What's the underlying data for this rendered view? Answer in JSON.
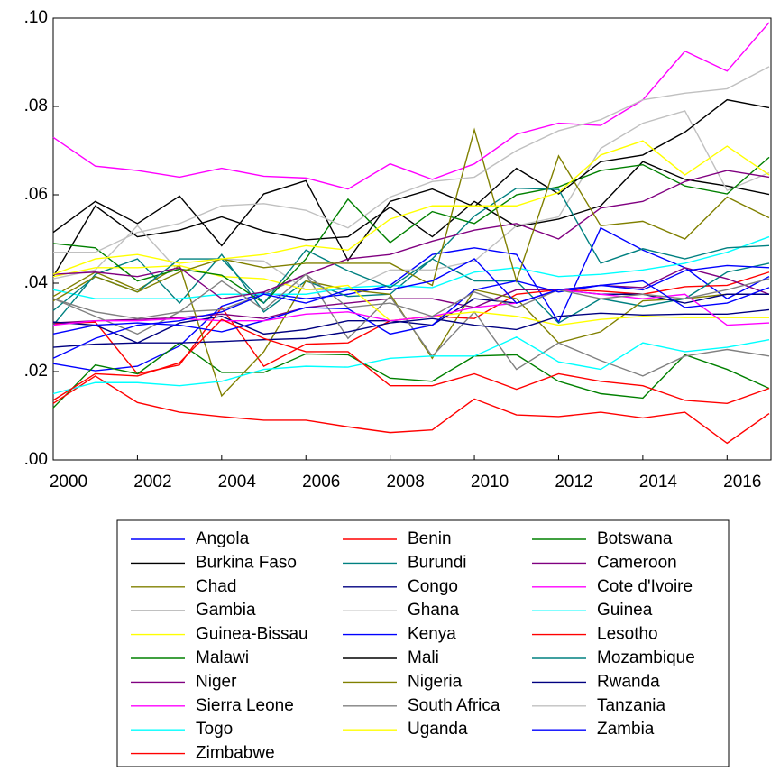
{
  "chart_data": {
    "type": "line",
    "x": [
      2000,
      2001,
      2002,
      2003,
      2004,
      2005,
      2006,
      2007,
      2008,
      2009,
      2010,
      2011,
      2012,
      2013,
      2014,
      2015,
      2016,
      2017
    ],
    "xlim": [
      2000,
      2017
    ],
    "xticks": [
      2000,
      2002,
      2004,
      2006,
      2008,
      2010,
      2012,
      2014,
      2016
    ],
    "ylim": [
      0,
      0.1
    ],
    "yticks": [
      {
        "value": 0,
        "label": ".00"
      },
      {
        "value": 0.02,
        "label": ".02"
      },
      {
        "value": 0.04,
        "label": ".04"
      },
      {
        "value": 0.06,
        "label": ".06"
      },
      {
        "value": 0.08,
        "label": ".08"
      },
      {
        "value": 0.1,
        "label": ".10"
      }
    ],
    "series": [
      {
        "name": "Angola",
        "color": "#0000ff",
        "values": [
          0.0218,
          0.0202,
          0.0212,
          0.0258,
          0.0348,
          0.0378,
          0.0365,
          0.0375,
          0.0395,
          0.0465,
          0.048,
          0.0465,
          0.0312,
          0.0525,
          0.0475,
          0.0435,
          0.0365,
          0.0415
        ]
      },
      {
        "name": "Benin",
        "color": "#ff0000",
        "values": [
          0.0308,
          0.0312,
          0.0195,
          0.0215,
          0.0345,
          0.0212,
          0.0262,
          0.0265,
          0.0315,
          0.0325,
          0.032,
          0.0375,
          0.0385,
          0.0382,
          0.0375,
          0.0392,
          0.0395,
          0.0425
        ]
      },
      {
        "name": "Botswana",
        "color": "#008000",
        "values": [
          0.0118,
          0.0215,
          0.0195,
          0.0265,
          0.0198,
          0.0198,
          0.024,
          0.0238,
          0.0185,
          0.0178,
          0.0235,
          0.0238,
          0.0178,
          0.015,
          0.014,
          0.0238,
          0.0205,
          0.0162
        ]
      },
      {
        "name": "Burkina Faso",
        "color": "#000000",
        "values": [
          0.0415,
          0.0575,
          0.0505,
          0.052,
          0.055,
          0.0518,
          0.0498,
          0.0505,
          0.0572,
          0.0505,
          0.0585,
          0.0528,
          0.0545,
          0.0575,
          0.0675,
          0.0635,
          0.062,
          0.0601
        ]
      },
      {
        "name": "Burundi",
        "color": "#008080",
        "values": [
          0.0305,
          0.042,
          0.0455,
          0.0355,
          0.0465,
          0.0335,
          0.0405,
          0.037,
          0.0375,
          0.0455,
          0.0405,
          0.0405,
          0.031,
          0.0365,
          0.0348,
          0.0365,
          0.0425,
          0.0445
        ]
      },
      {
        "name": "Cameroon",
        "color": "#800080",
        "values": [
          0.031,
          0.0315,
          0.0318,
          0.0322,
          0.033,
          0.032,
          0.0345,
          0.0355,
          0.0365,
          0.0365,
          0.0345,
          0.0385,
          0.0385,
          0.0395,
          0.039,
          0.0435,
          0.041,
          0.0375
        ]
      },
      {
        "name": "Chad",
        "color": "#808000",
        "values": [
          0.037,
          0.0425,
          0.0385,
          0.044,
          0.0145,
          0.0245,
          0.0405,
          0.0385,
          0.0375,
          0.023,
          0.0385,
          0.0365,
          0.0265,
          0.029,
          0.036,
          0.0365,
          0.0375,
          0.0375
        ]
      },
      {
        "name": "Congo",
        "color": "#000080",
        "values": [
          0.0312,
          0.0305,
          0.0265,
          0.031,
          0.0325,
          0.0285,
          0.0295,
          0.0315,
          0.0315,
          0.0305,
          0.0365,
          0.0355,
          0.0385,
          0.0375,
          0.0375,
          0.0355,
          0.0375,
          0.0375
        ]
      },
      {
        "name": "Cote d'Ivoire",
        "color": "#ff00ff",
        "values": [
          0.073,
          0.0665,
          0.0655,
          0.064,
          0.066,
          0.0642,
          0.0638,
          0.0613,
          0.067,
          0.0635,
          0.067,
          0.0737,
          0.0762,
          0.0757,
          0.0815,
          0.0925,
          0.088,
          0.099
        ]
      },
      {
        "name": "Gambia",
        "color": "#808080",
        "values": [
          0.0365,
          0.0325,
          0.0285,
          0.0335,
          0.034,
          0.0375,
          0.042,
          0.0275,
          0.037,
          0.0235,
          0.0335,
          0.0205,
          0.0265,
          0.0225,
          0.019,
          0.0235,
          0.025,
          0.0235
        ]
      },
      {
        "name": "Ghana",
        "color": "#c0c0c0",
        "values": [
          0.041,
          0.043,
          0.053,
          0.0425,
          0.0455,
          0.045,
          0.0385,
          0.0385,
          0.043,
          0.043,
          0.045,
          0.053,
          0.055,
          0.0705,
          0.0762,
          0.079,
          0.061,
          0.065
        ]
      },
      {
        "name": "Guinea",
        "color": "#00ffff",
        "values": [
          0.0385,
          0.0365,
          0.0365,
          0.0365,
          0.0375,
          0.0375,
          0.0375,
          0.039,
          0.0395,
          0.039,
          0.0425,
          0.0435,
          0.0415,
          0.042,
          0.043,
          0.0445,
          0.047,
          0.0505
        ]
      },
      {
        "name": "Guinea-Bissau",
        "color": "#ffff00",
        "values": [
          0.0415,
          0.0435,
          0.0435,
          0.044,
          0.0415,
          0.041,
          0.0385,
          0.0395,
          0.0315,
          0.0325,
          0.0335,
          0.0325,
          0.0305,
          0.0318,
          0.0325,
          0.0322,
          0.0322,
          0.0322
        ]
      },
      {
        "name": "Kenya",
        "color": "#0000ff",
        "values": [
          0.0285,
          0.0305,
          0.031,
          0.0305,
          0.029,
          0.0315,
          0.0345,
          0.0342,
          0.0285,
          0.0305,
          0.0385,
          0.0405,
          0.038,
          0.0395,
          0.0385,
          0.0428,
          0.044,
          0.0435
        ]
      },
      {
        "name": "Lesotho",
        "color": "#ff0000",
        "values": [
          0.0128,
          0.019,
          0.013,
          0.0108,
          0.0098,
          0.009,
          0.009,
          0.0075,
          0.0062,
          0.0068,
          0.0138,
          0.0102,
          0.0098,
          0.0108,
          0.0095,
          0.0108,
          0.0038,
          0.0105
        ]
      },
      {
        "name": "Malawi",
        "color": "#008000",
        "values": [
          0.049,
          0.048,
          0.0405,
          0.0432,
          0.0418,
          0.0355,
          0.0455,
          0.059,
          0.0492,
          0.0562,
          0.0535,
          0.06,
          0.0618,
          0.0655,
          0.0668,
          0.062,
          0.0602,
          0.0685
        ]
      },
      {
        "name": "Mali",
        "color": "#000000",
        "values": [
          0.0515,
          0.0585,
          0.0535,
          0.0597,
          0.0485,
          0.0602,
          0.0632,
          0.0452,
          0.0585,
          0.0613,
          0.0573,
          0.066,
          0.0602,
          0.0675,
          0.069,
          0.0742,
          0.0815,
          0.0797
        ]
      },
      {
        "name": "Mozambique",
        "color": "#008080",
        "values": [
          0.0338,
          0.0415,
          0.038,
          0.0455,
          0.0455,
          0.0355,
          0.0475,
          0.0428,
          0.039,
          0.0455,
          0.0552,
          0.0615,
          0.0612,
          0.0445,
          0.0478,
          0.0455,
          0.048,
          0.0485
        ]
      },
      {
        "name": "Niger",
        "color": "#800080",
        "values": [
          0.042,
          0.0425,
          0.0415,
          0.0435,
          0.0365,
          0.038,
          0.042,
          0.0455,
          0.0465,
          0.0495,
          0.052,
          0.0535,
          0.05,
          0.057,
          0.0585,
          0.063,
          0.0655,
          0.064
        ]
      },
      {
        "name": "Nigeria",
        "color": "#808000",
        "values": [
          0.036,
          0.0415,
          0.038,
          0.0425,
          0.0455,
          0.0435,
          0.0445,
          0.0445,
          0.0445,
          0.0395,
          0.0747,
          0.0405,
          0.0688,
          0.053,
          0.054,
          0.05,
          0.0595,
          0.0548
        ]
      },
      {
        "name": "Rwanda",
        "color": "#000080",
        "values": [
          0.0255,
          0.0262,
          0.0265,
          0.0265,
          0.0268,
          0.0272,
          0.0275,
          0.029,
          0.031,
          0.032,
          0.0305,
          0.0295,
          0.0325,
          0.0332,
          0.0328,
          0.033,
          0.033,
          0.034
        ]
      },
      {
        "name": "Sierra Leone",
        "color": "#ff00ff",
        "values": [
          0.0305,
          0.0315,
          0.0315,
          0.032,
          0.0315,
          0.0315,
          0.033,
          0.0335,
          0.0315,
          0.0325,
          0.0345,
          0.0355,
          0.0385,
          0.0375,
          0.0365,
          0.0375,
          0.0305,
          0.031
        ]
      },
      {
        "name": "South Africa",
        "color": "#808080",
        "values": [
          0.0365,
          0.0335,
          0.032,
          0.0335,
          0.0405,
          0.034,
          0.042,
          0.0345,
          0.0355,
          0.0325,
          0.038,
          0.0345,
          0.0385,
          0.0365,
          0.0375,
          0.0365,
          0.0385,
          0.041
        ]
      },
      {
        "name": "Tanzania",
        "color": "#c0c0c0",
        "values": [
          0.047,
          0.047,
          0.0515,
          0.0535,
          0.0575,
          0.058,
          0.0565,
          0.0525,
          0.0595,
          0.063,
          0.064,
          0.07,
          0.0745,
          0.077,
          0.0815,
          0.083,
          0.084,
          0.089
        ]
      },
      {
        "name": "Togo",
        "color": "#00ffff",
        "values": [
          0.015,
          0.0175,
          0.0175,
          0.0168,
          0.0178,
          0.0205,
          0.0212,
          0.021,
          0.023,
          0.0235,
          0.0235,
          0.0278,
          0.0222,
          0.0205,
          0.0265,
          0.0245,
          0.0255,
          0.0272
        ]
      },
      {
        "name": "Uganda",
        "color": "#ffff00",
        "values": [
          0.042,
          0.0455,
          0.0465,
          0.0445,
          0.0455,
          0.0465,
          0.0485,
          0.0475,
          0.0545,
          0.0575,
          0.0575,
          0.0575,
          0.0605,
          0.069,
          0.0722,
          0.0645,
          0.071,
          0.0645
        ]
      },
      {
        "name": "Zambia",
        "color": "#0000ff",
        "values": [
          0.023,
          0.0275,
          0.0305,
          0.0315,
          0.0335,
          0.0375,
          0.0355,
          0.0385,
          0.0385,
          0.0405,
          0.0455,
          0.0355,
          0.0385,
          0.0395,
          0.0405,
          0.0345,
          0.0355,
          0.039
        ]
      },
      {
        "name": "Zimbabwe",
        "color": "#ff0000",
        "values": [
          0.0135,
          0.0195,
          0.019,
          0.022,
          0.0318,
          0.0275,
          0.0245,
          0.0245,
          0.0168,
          0.0168,
          0.0195,
          0.016,
          0.0195,
          0.0178,
          0.0168,
          0.0135,
          0.0128,
          0.0162
        ]
      }
    ]
  }
}
